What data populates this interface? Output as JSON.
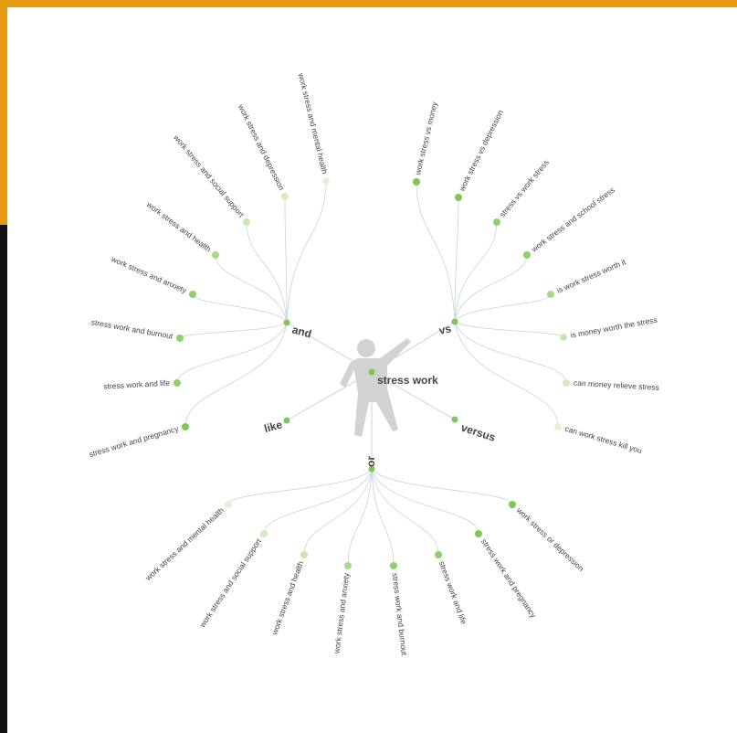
{
  "center": {
    "label": "stress work"
  },
  "branches": [
    {
      "label": "and",
      "leaves": [
        {
          "label": "work stress and mental health",
          "color": "#e2f2d6"
        },
        {
          "label": "work stress and depression",
          "color": "#d4ecc2"
        },
        {
          "label": "work stress and social support",
          "color": "#c9e8b0"
        },
        {
          "label": "work stress and health",
          "color": "#a8da85"
        },
        {
          "label": "work stress and anxiety",
          "color": "#8fd06a"
        },
        {
          "label": "stress work and burnout",
          "color": "#8fd06a"
        },
        {
          "label": "stress work and life",
          "color": "#8fd06a"
        },
        {
          "label": "stress work and pregnancy",
          "color": "#7dc855"
        }
      ]
    },
    {
      "label": "vs",
      "leaves": [
        {
          "label": "work stress vs money",
          "color": "#7dc855"
        },
        {
          "label": "work stress vs depression",
          "color": "#7dc855"
        },
        {
          "label": "stress vs work stress",
          "color": "#8fd06a"
        },
        {
          "label": "work stress and school stress",
          "color": "#8fd06a"
        },
        {
          "label": "is work stress worth it",
          "color": "#a8da85"
        },
        {
          "label": "is money worth the stress",
          "color": "#c9e8b0"
        },
        {
          "label": "can money relieve stress",
          "color": "#d4ecc2"
        },
        {
          "label": "can work stress kill you",
          "color": "#e2f2d6"
        }
      ]
    },
    {
      "label": "like",
      "leaves": []
    },
    {
      "label": "versus",
      "leaves": []
    },
    {
      "label": "or",
      "leaves": [
        {
          "label": "work stress and mental health",
          "color": "#e2f2d6"
        },
        {
          "label": "work stress and social support",
          "color": "#d4ecc2"
        },
        {
          "label": "work stress and health",
          "color": "#c9e8b0"
        },
        {
          "label": "work stress and anxiety",
          "color": "#a8da85"
        },
        {
          "label": "stress work and burnout",
          "color": "#8fd06a"
        },
        {
          "label": "stress work and life",
          "color": "#8fd06a"
        },
        {
          "label": "stress work and pregnancy",
          "color": "#7dc855"
        },
        {
          "label": "work stress or depression",
          "color": "#7dc855"
        }
      ]
    }
  ]
}
